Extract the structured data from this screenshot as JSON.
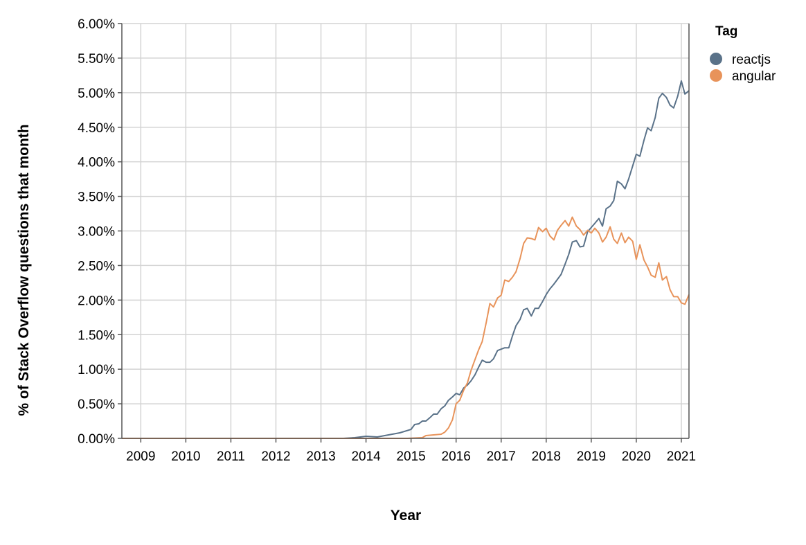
{
  "chart_data": {
    "type": "line",
    "title": "",
    "xlabel": "Year",
    "ylabel": "% of Stack Overflow questions that month",
    "xlim": [
      2008.58,
      2021.17
    ],
    "ylim": [
      0,
      0.06
    ],
    "grid": true,
    "legend": {
      "title": "Tag",
      "position": "top-right"
    },
    "x_ticks": [
      "2009",
      "2010",
      "2011",
      "2012",
      "2013",
      "2014",
      "2015",
      "2016",
      "2017",
      "2018",
      "2019",
      "2020",
      "2021"
    ],
    "y_ticks": [
      "0.00%",
      "0.50%",
      "1.00%",
      "1.50%",
      "2.00%",
      "2.50%",
      "3.00%",
      "3.50%",
      "4.00%",
      "4.50%",
      "5.00%",
      "5.50%",
      "6.00%"
    ],
    "series": [
      {
        "name": "reactjs",
        "color": "#5a7289",
        "points": [
          [
            2008.58,
            0
          ],
          [
            2013.5,
            0
          ],
          [
            2013.75,
            0.0001
          ],
          [
            2014.0,
            0.0003
          ],
          [
            2014.25,
            0.0002
          ],
          [
            2014.5,
            0.0005
          ],
          [
            2014.75,
            0.0008
          ],
          [
            2015.0,
            0.0013
          ],
          [
            2015.08,
            0.002
          ],
          [
            2015.17,
            0.0021
          ],
          [
            2015.25,
            0.0025
          ],
          [
            2015.33,
            0.0025
          ],
          [
            2015.42,
            0.003
          ],
          [
            2015.5,
            0.0035
          ],
          [
            2015.58,
            0.0035
          ],
          [
            2015.67,
            0.0043
          ],
          [
            2015.75,
            0.0047
          ],
          [
            2015.83,
            0.0055
          ],
          [
            2015.92,
            0.006
          ],
          [
            2016.0,
            0.0065
          ],
          [
            2016.08,
            0.0063
          ],
          [
            2016.17,
            0.0073
          ],
          [
            2016.25,
            0.0077
          ],
          [
            2016.33,
            0.0083
          ],
          [
            2016.42,
            0.0092
          ],
          [
            2016.5,
            0.0103
          ],
          [
            2016.58,
            0.0113
          ],
          [
            2016.67,
            0.011
          ],
          [
            2016.75,
            0.011
          ],
          [
            2016.83,
            0.0115
          ],
          [
            2016.92,
            0.0127
          ],
          [
            2017.0,
            0.0129
          ],
          [
            2017.08,
            0.0131
          ],
          [
            2017.17,
            0.0131
          ],
          [
            2017.25,
            0.0148
          ],
          [
            2017.33,
            0.0163
          ],
          [
            2017.42,
            0.0172
          ],
          [
            2017.5,
            0.0186
          ],
          [
            2017.58,
            0.0188
          ],
          [
            2017.67,
            0.0177
          ],
          [
            2017.75,
            0.0188
          ],
          [
            2017.83,
            0.0188
          ],
          [
            2017.92,
            0.0198
          ],
          [
            2018.0,
            0.0208
          ],
          [
            2018.08,
            0.0216
          ],
          [
            2018.17,
            0.0223
          ],
          [
            2018.25,
            0.023
          ],
          [
            2018.33,
            0.0237
          ],
          [
            2018.42,
            0.0252
          ],
          [
            2018.5,
            0.0266
          ],
          [
            2018.58,
            0.0284
          ],
          [
            2018.67,
            0.0286
          ],
          [
            2018.75,
            0.0277
          ],
          [
            2018.83,
            0.0278
          ],
          [
            2018.92,
            0.0299
          ],
          [
            2019.0,
            0.0305
          ],
          [
            2019.08,
            0.0311
          ],
          [
            2019.17,
            0.0318
          ],
          [
            2019.25,
            0.0307
          ],
          [
            2019.33,
            0.0332
          ],
          [
            2019.42,
            0.0336
          ],
          [
            2019.5,
            0.0344
          ],
          [
            2019.58,
            0.0372
          ],
          [
            2019.67,
            0.0368
          ],
          [
            2019.75,
            0.0361
          ],
          [
            2019.83,
            0.0375
          ],
          [
            2019.92,
            0.0394
          ],
          [
            2020.0,
            0.0411
          ],
          [
            2020.08,
            0.0408
          ],
          [
            2020.17,
            0.0431
          ],
          [
            2020.25,
            0.0449
          ],
          [
            2020.33,
            0.0445
          ],
          [
            2020.42,
            0.0464
          ],
          [
            2020.5,
            0.0492
          ],
          [
            2020.58,
            0.0499
          ],
          [
            2020.67,
            0.0493
          ],
          [
            2020.75,
            0.0482
          ],
          [
            2020.83,
            0.0478
          ],
          [
            2020.92,
            0.0495
          ],
          [
            2021.0,
            0.0517
          ],
          [
            2021.08,
            0.0498
          ],
          [
            2021.17,
            0.0503
          ]
        ]
      },
      {
        "name": "angular",
        "color": "#e8935a",
        "points": [
          [
            2008.58,
            0
          ],
          [
            2014.92,
            0
          ],
          [
            2015.25,
            0.0001
          ],
          [
            2015.33,
            0.0004
          ],
          [
            2015.5,
            0.0005
          ],
          [
            2015.67,
            0.0006
          ],
          [
            2015.75,
            0.0009
          ],
          [
            2015.83,
            0.0015
          ],
          [
            2015.92,
            0.0027
          ],
          [
            2016.0,
            0.005
          ],
          [
            2016.08,
            0.0055
          ],
          [
            2016.17,
            0.007
          ],
          [
            2016.25,
            0.008
          ],
          [
            2016.33,
            0.0098
          ],
          [
            2016.42,
            0.0114
          ],
          [
            2016.5,
            0.0128
          ],
          [
            2016.58,
            0.014
          ],
          [
            2016.67,
            0.0168
          ],
          [
            2016.75,
            0.0195
          ],
          [
            2016.83,
            0.019
          ],
          [
            2016.92,
            0.0203
          ],
          [
            2017.0,
            0.0207
          ],
          [
            2017.08,
            0.0229
          ],
          [
            2017.17,
            0.0227
          ],
          [
            2017.25,
            0.0233
          ],
          [
            2017.33,
            0.0241
          ],
          [
            2017.42,
            0.026
          ],
          [
            2017.5,
            0.0282
          ],
          [
            2017.58,
            0.029
          ],
          [
            2017.67,
            0.0289
          ],
          [
            2017.75,
            0.0287
          ],
          [
            2017.83,
            0.0305
          ],
          [
            2017.92,
            0.0299
          ],
          [
            2018.0,
            0.0304
          ],
          [
            2018.08,
            0.0293
          ],
          [
            2018.17,
            0.0287
          ],
          [
            2018.25,
            0.0301
          ],
          [
            2018.33,
            0.0308
          ],
          [
            2018.42,
            0.0315
          ],
          [
            2018.5,
            0.0307
          ],
          [
            2018.58,
            0.032
          ],
          [
            2018.67,
            0.0307
          ],
          [
            2018.75,
            0.0302
          ],
          [
            2018.83,
            0.0294
          ],
          [
            2018.92,
            0.0301
          ],
          [
            2019.0,
            0.0297
          ],
          [
            2019.08,
            0.0304
          ],
          [
            2019.17,
            0.0297
          ],
          [
            2019.25,
            0.0284
          ],
          [
            2019.33,
            0.0291
          ],
          [
            2019.42,
            0.0306
          ],
          [
            2019.5,
            0.0288
          ],
          [
            2019.58,
            0.0282
          ],
          [
            2019.67,
            0.0297
          ],
          [
            2019.75,
            0.0283
          ],
          [
            2019.83,
            0.0291
          ],
          [
            2019.92,
            0.0285
          ],
          [
            2020.0,
            0.0259
          ],
          [
            2020.08,
            0.028
          ],
          [
            2020.17,
            0.0258
          ],
          [
            2020.25,
            0.0248
          ],
          [
            2020.33,
            0.0236
          ],
          [
            2020.42,
            0.0233
          ],
          [
            2020.5,
            0.0254
          ],
          [
            2020.58,
            0.0229
          ],
          [
            2020.67,
            0.0234
          ],
          [
            2020.75,
            0.0215
          ],
          [
            2020.83,
            0.0205
          ],
          [
            2020.92,
            0.0205
          ],
          [
            2021.0,
            0.0196
          ],
          [
            2021.08,
            0.0194
          ],
          [
            2021.17,
            0.0208
          ]
        ]
      }
    ]
  }
}
